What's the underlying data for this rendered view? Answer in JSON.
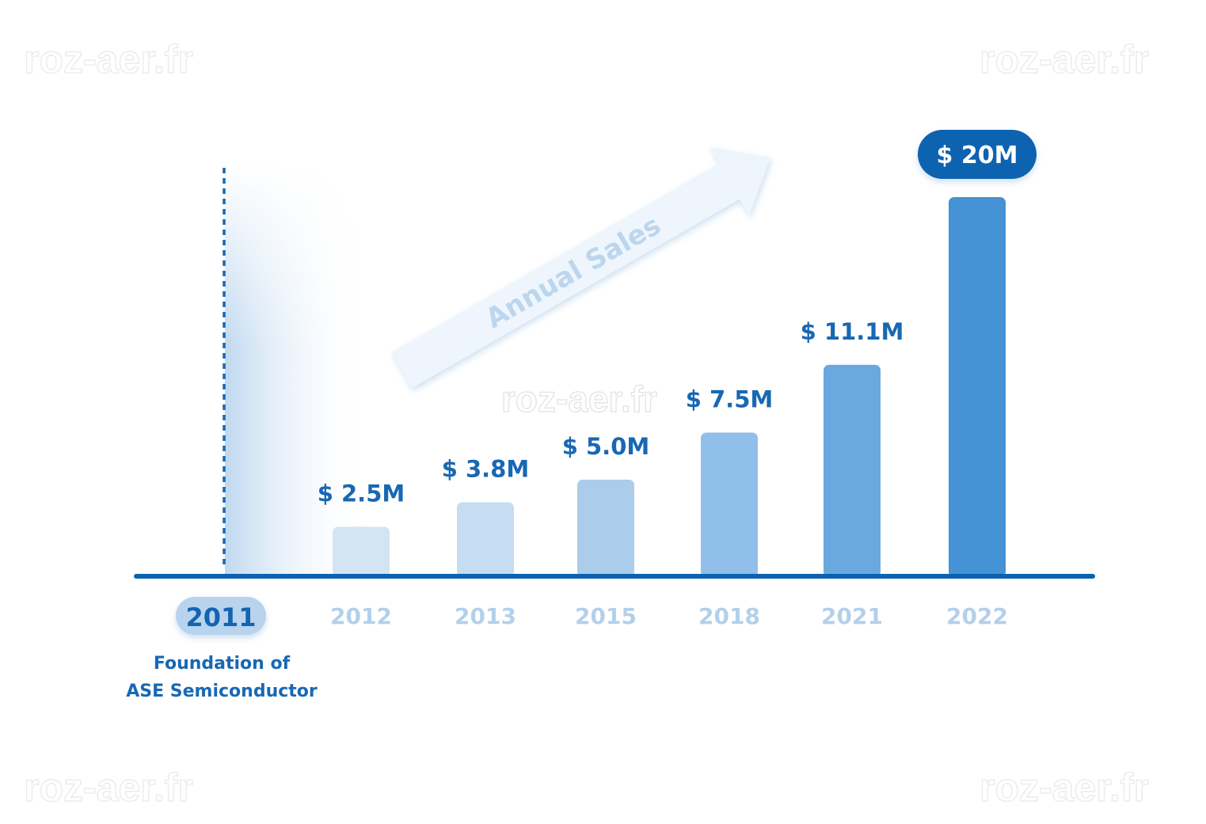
{
  "watermark": "roz-aer.fr",
  "chart_data": {
    "type": "bar",
    "title": "",
    "xlabel": "",
    "ylabel": "",
    "trend_label": "Annual Sales",
    "ylim": [
      0,
      20
    ],
    "value_unit": "M",
    "start": {
      "year": "2011",
      "caption_lines": [
        "Foundation of",
        "ASE Semiconductor"
      ]
    },
    "categories": [
      "2012",
      "2013",
      "2015",
      "2018",
      "2021",
      "2022"
    ],
    "values": [
      2.5,
      3.8,
      5.0,
      7.5,
      11.1,
      20
    ],
    "value_labels": [
      "$ 2.5M",
      "$ 3.8M",
      "$ 5.0M",
      "$ 7.5M",
      "$ 11.1M",
      "$ 20M"
    ],
    "bar_colors": [
      "#d3e4f3",
      "#c6dcf0",
      "#abcceb",
      "#90bfeb",
      "#6aa9df",
      "#4592d4"
    ],
    "accent_color": "#0b63b0",
    "axis_color": "#0b63b0"
  }
}
